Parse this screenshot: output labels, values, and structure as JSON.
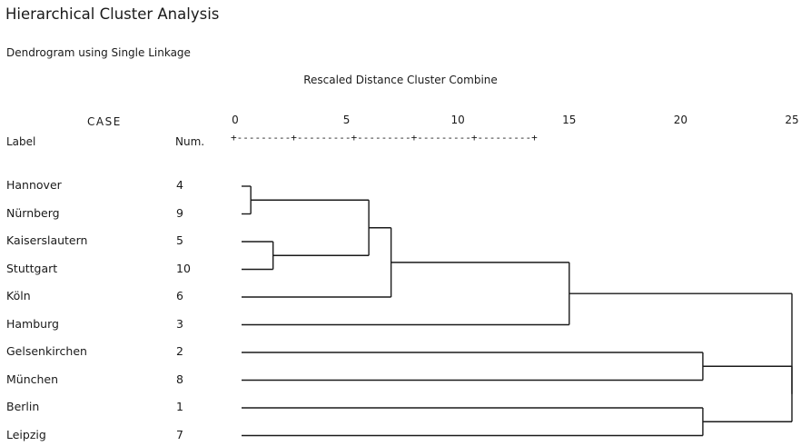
{
  "title": "Hierarchical Cluster Analysis",
  "subtitle": "Dendrogram using Single Linkage",
  "chart_data": {
    "type": "dendrogram",
    "axis_title": "Rescaled Distance Cluster Combine",
    "xlim": [
      0,
      25
    ],
    "ticks": [
      0,
      5,
      10,
      15,
      20,
      25
    ],
    "ruler_text": "+---------+---------+---------+---------+---------+",
    "header_case": "CASE",
    "header_label": "Label",
    "header_num": "Num.",
    "cases": [
      {
        "label": "Hannover",
        "num": "4"
      },
      {
        "label": "Nürnberg",
        "num": "9"
      },
      {
        "label": "Kaiserslautern",
        "num": "5"
      },
      {
        "label": "Stuttgart",
        "num": "10"
      },
      {
        "label": "Köln",
        "num": "6"
      },
      {
        "label": "Hamburg",
        "num": "3"
      },
      {
        "label": "Gelsenkirchen",
        "num": "2"
      },
      {
        "label": "München",
        "num": "8"
      },
      {
        "label": "Berlin",
        "num": "1"
      },
      {
        "label": "Leipzig",
        "num": "7"
      }
    ],
    "merges": [
      {
        "left": "Hannover",
        "right": "Nürnberg",
        "distance": 0.7
      },
      {
        "left": "Kaiserslautern",
        "right": "Stuttgart",
        "distance": 1.7
      },
      {
        "left": "Hannover + Nürnberg",
        "right": "Kaiserslautern + Stuttgart",
        "distance": 6.0
      },
      {
        "left": "Hannover + Nürnberg + Kaiserslautern + Stuttgart",
        "right": "Köln",
        "distance": 7.0
      },
      {
        "left": "Hannover … Köln",
        "right": "Hamburg",
        "distance": 15.0
      },
      {
        "left": "Gelsenkirchen",
        "right": "München",
        "distance": 21.0
      },
      {
        "left": "Berlin",
        "right": "Leipzig",
        "distance": 21.0
      },
      {
        "left": "Gelsenkirchen + München",
        "right": "Berlin + Leipzig",
        "distance": 25.0
      },
      {
        "left": "Hannover … Hamburg",
        "right": "Gelsenkirchen … Leipzig",
        "distance": 25.0
      }
    ]
  }
}
